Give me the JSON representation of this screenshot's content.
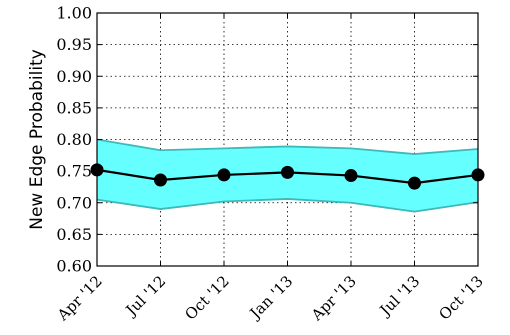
{
  "chart_data": {
    "type": "line",
    "ylabel": "New Edge Probability",
    "xlabel": "",
    "categories": [
      "Apr '12",
      "Jul '12",
      "Oct '12",
      "Jan '13",
      "Apr '13",
      "Jul '13",
      "Oct '13"
    ],
    "series": [
      {
        "values": [
          0.752,
          0.736,
          0.744,
          0.748,
          0.743,
          0.731,
          0.744
        ]
      }
    ],
    "band": {
      "upper": [
        0.8,
        0.783,
        0.786,
        0.789,
        0.786,
        0.777,
        0.785
      ],
      "lower": [
        0.705,
        0.69,
        0.702,
        0.706,
        0.7,
        0.686,
        0.701
      ]
    },
    "ylim": [
      0.6,
      1.0
    ],
    "yticks": [
      0.6,
      0.65,
      0.7,
      0.75,
      0.8,
      0.85,
      0.9,
      0.95,
      1.0
    ],
    "ytick_labels": [
      "0.60",
      "0.65",
      "0.70",
      "0.75",
      "0.80",
      "0.85",
      "0.90",
      "0.95",
      "1.00"
    ],
    "grid": true,
    "colors": {
      "line": "#000000",
      "marker": "#000000",
      "band_fill": "#66ffff",
      "band_edge": "#3fb8b8",
      "grid": "#000000"
    }
  }
}
